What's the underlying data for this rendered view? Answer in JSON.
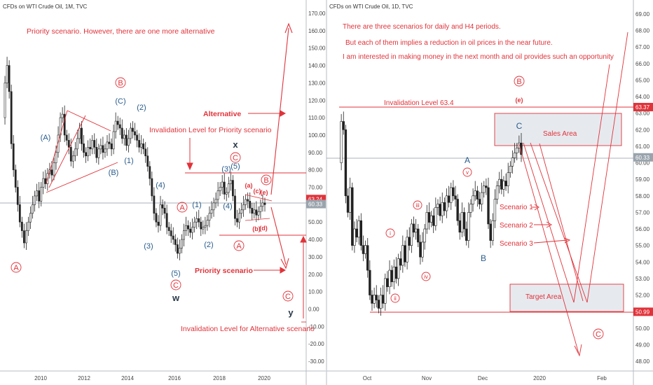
{
  "chart_data": [
    {
      "type": "candlestick",
      "title": "CFDs on WTI Crude Oil, 1M, TVC",
      "x_ticks": [
        "2010",
        "2012",
        "2014",
        "2016",
        "2018",
        "2020"
      ],
      "y_ticks": [
        "170.00",
        "160.00",
        "150.00",
        "140.00",
        "130.00",
        "120.00",
        "110.00",
        "100.00",
        "90.00",
        "80.00",
        "70.00",
        "60.00",
        "50.00",
        "40.00",
        "30.00",
        "20.00",
        "10.00",
        "0.00",
        "-10.00",
        "-20.00",
        "-30.00"
      ],
      "ylim": [
        -34,
        178
      ],
      "price_tags": [
        {
          "label": "63.24",
          "value": 63.24,
          "color": "#e0333a"
        },
        {
          "label": "60.33",
          "value": 60.33,
          "color": "#9aa4ad"
        }
      ],
      "levels": [
        {
          "name": "alt-invalidation",
          "value": 78
        },
        {
          "name": "priority-invalidation",
          "value": 42
        }
      ],
      "annotations": {
        "note": "Priority scenario. However, there are one more alternative",
        "alternative": "Alternative",
        "priority_scenario": "Priority scenario",
        "priority_invalidation": "Invalidation Level for Priority scenario",
        "alt_invalidation": "Invalidation Level for Alternative scenario"
      },
      "wave_labels": {
        "A1": "A",
        "A2": "(A)",
        "B1": "(B)",
        "C1": "(C)",
        "B2": "B",
        "one": "(1)",
        "two": "(2)",
        "three": "(3)",
        "four": "(4)",
        "five": "(5)",
        "one_b": "(1)",
        "two_b": "(2)",
        "three_b": "(3)",
        "four_b": "(4)",
        "five_b": "(5)",
        "A_b": "A",
        "C_b": "C",
        "W": "w",
        "X": "x",
        "Y": "y",
        "C_c": "C",
        "B_c": "B",
        "A_c": "A",
        "a_small": "(a)",
        "b_small": "(b)",
        "c_small": "(c)",
        "d_small": "(d)",
        "e_small": "(e)",
        "C_end": "C"
      }
    },
    {
      "type": "candlestick",
      "title": "CFDs on WTI Crude Oil, 1D, TVC",
      "x_ticks": [
        "Oct",
        "Nov",
        "Dec",
        "2020",
        "Feb"
      ],
      "y_ticks": [
        "69.00",
        "68.00",
        "67.00",
        "66.00",
        "65.00",
        "64.00",
        "63.00",
        "62.00",
        "61.00",
        "60.00",
        "59.00",
        "58.00",
        "57.00",
        "56.00",
        "55.00",
        "54.00",
        "53.00",
        "52.00",
        "51.00",
        "50.00",
        "49.00",
        "48.00"
      ],
      "ylim": [
        47.5,
        69.5
      ],
      "price_tags": [
        {
          "label": "63.37",
          "value": 63.37,
          "color": "#e0333a"
        },
        {
          "label": "60.33",
          "value": 60.33,
          "color": "#9aa4ad"
        },
        {
          "label": "50.99",
          "value": 50.99,
          "color": "#e0333a"
        }
      ],
      "notes": [
        "There are three scenarios for daily and H4 periods.",
        "But each of them implies a reduction in oil prices in the near future.",
        "I am interested in making money in the next month and oil provides such an opportunity"
      ],
      "invalidation_label": "Invalidation Level 63.4",
      "sales_area": "Sales Area",
      "target_area": "Target Area",
      "scenarios": [
        "Scenario 1",
        "Scenario 2",
        "Scenario 3"
      ],
      "wave_labels": {
        "B_big": "B",
        "e": "(e)",
        "C": "C",
        "A": "A",
        "B": "B",
        "i": "i",
        "ii": "ii",
        "iii": "iii",
        "iv": "iv",
        "v": "v",
        "C_end": "C"
      }
    }
  ]
}
